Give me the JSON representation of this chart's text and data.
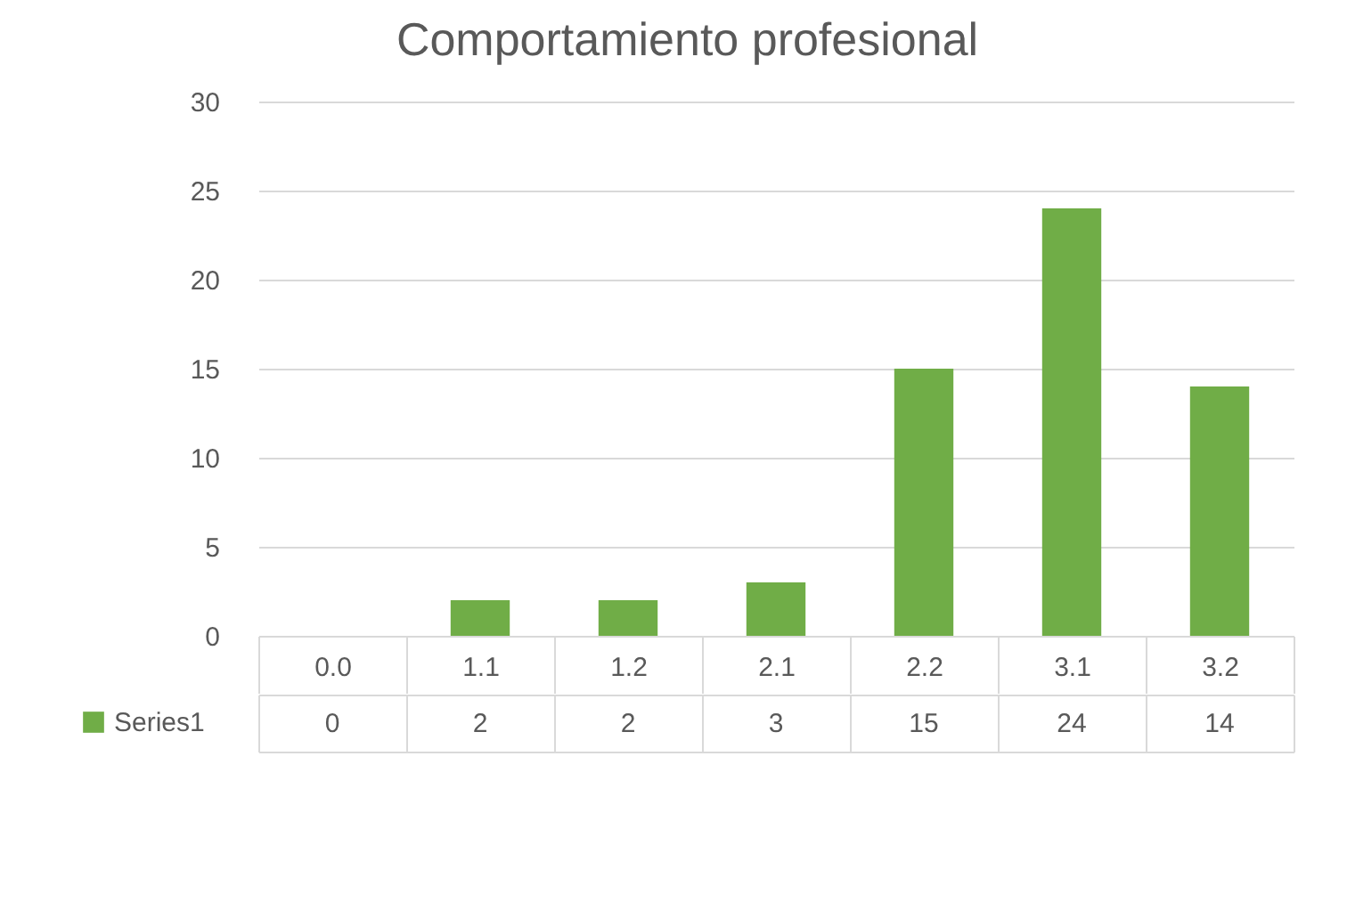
{
  "chart_data": {
    "type": "bar",
    "title": "Comportamiento profesional",
    "categories": [
      "0.0",
      "1.1",
      "1.2",
      "2.1",
      "2.2",
      "3.1",
      "3.2"
    ],
    "series": [
      {
        "name": "Series1",
        "color": "#70ad47",
        "values": [
          0,
          2,
          2,
          3,
          15,
          24,
          14
        ]
      }
    ],
    "ylim": [
      0,
      30
    ],
    "yticks": [
      0,
      5,
      10,
      15,
      20,
      25,
      30
    ],
    "grid": "y",
    "legend": "bottom",
    "data_labels": true
  }
}
